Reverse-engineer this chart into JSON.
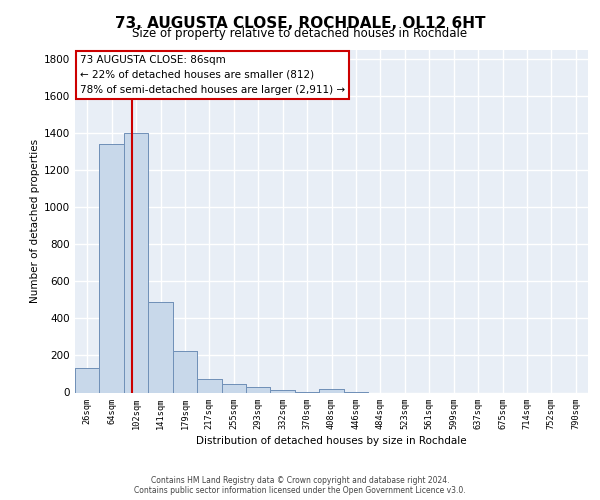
{
  "title_line1": "73, AUGUSTA CLOSE, ROCHDALE, OL12 6HT",
  "title_line2": "Size of property relative to detached houses in Rochdale",
  "xlabel": "Distribution of detached houses by size in Rochdale",
  "ylabel": "Number of detached properties",
  "footer_line1": "Contains HM Land Registry data © Crown copyright and database right 2024.",
  "footer_line2": "Contains public sector information licensed under the Open Government Licence v3.0.",
  "bar_labels": [
    "26sqm",
    "64sqm",
    "102sqm",
    "141sqm",
    "179sqm",
    "217sqm",
    "255sqm",
    "293sqm",
    "332sqm",
    "370sqm",
    "408sqm",
    "446sqm",
    "484sqm",
    "523sqm",
    "561sqm",
    "599sqm",
    "637sqm",
    "675sqm",
    "714sqm",
    "752sqm",
    "790sqm"
  ],
  "bar_values": [
    135,
    1340,
    1400,
    490,
    225,
    75,
    45,
    28,
    15,
    2,
    18,
    2,
    0,
    0,
    0,
    0,
    0,
    0,
    0,
    0,
    0
  ],
  "bar_color": "#c8d8ea",
  "bar_edgecolor": "#7090b8",
  "vline_x": 1.85,
  "annotation_text_line1": "73 AUGUSTA CLOSE: 86sqm",
  "annotation_text_line2": "← 22% of detached houses are smaller (812)",
  "annotation_text_line3": "78% of semi-detached houses are larger (2,911) →",
  "vline_color": "#cc0000",
  "annotation_box_color": "#ffffff",
  "annotation_box_edgecolor": "#cc0000",
  "ylim_max": 1850,
  "yticks": [
    0,
    200,
    400,
    600,
    800,
    1000,
    1200,
    1400,
    1600,
    1800
  ],
  "background_color": "#e8eef6",
  "grid_color": "#ffffff",
  "fig_bg": "#ffffff"
}
